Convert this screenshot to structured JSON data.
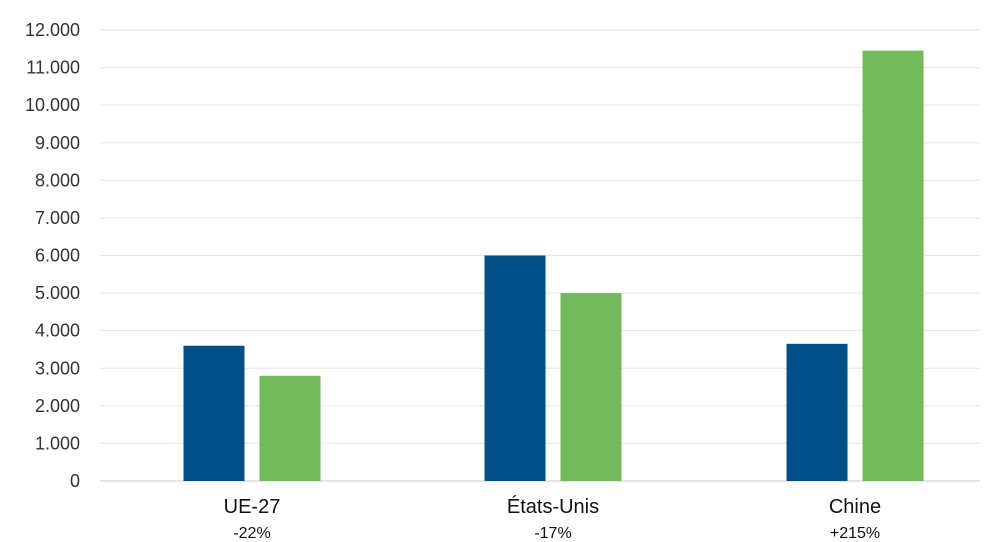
{
  "chart_data": {
    "type": "bar",
    "categories": [
      "UE-27",
      "États-Unis",
      "Chine"
    ],
    "category_notes": [
      "-22%",
      "-17%",
      "+215%"
    ],
    "series": [
      {
        "color": "#004f86",
        "values": [
          3600,
          6000,
          3650
        ]
      },
      {
        "color": "#74b95b",
        "values": [
          2800,
          5000,
          11450
        ]
      }
    ],
    "y_ticks": [
      "0",
      "1.000",
      "2.000",
      "3.000",
      "4.000",
      "5.000",
      "6.000",
      "7.000",
      "8.000",
      "9.000",
      "10.000",
      "11.000",
      "12.000"
    ],
    "ylim": [
      0,
      12000
    ],
    "grid": true,
    "legend": "none"
  }
}
